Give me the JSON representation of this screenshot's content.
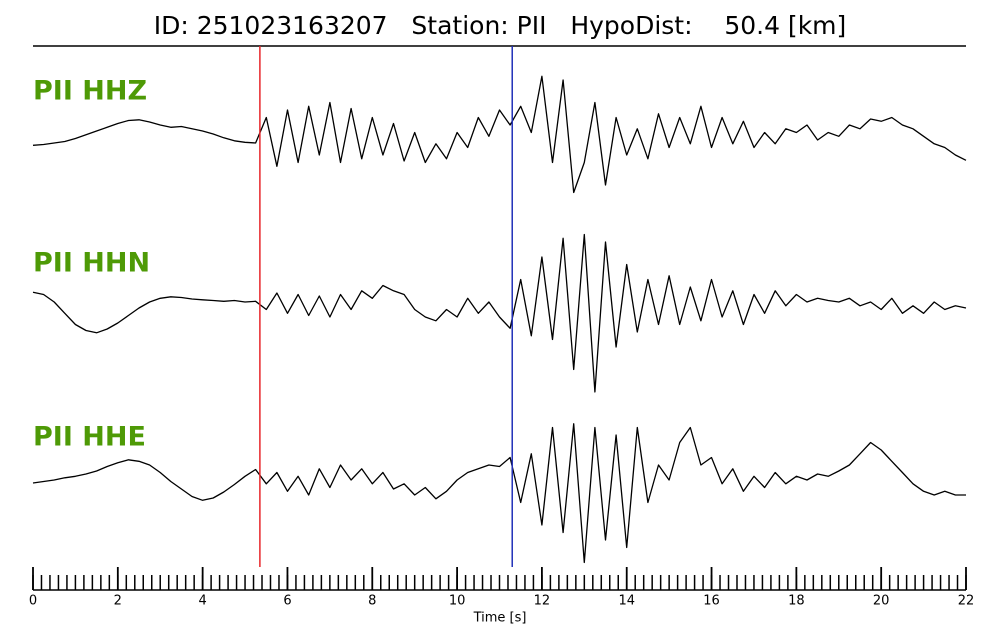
{
  "chart_data": {
    "type": "line",
    "title": "ID: 251023163207   Station: PII   HypoDist:    50.4 [km]",
    "xlabel": "Time [s]",
    "xlim": [
      0,
      22
    ],
    "xticks": [
      0,
      2,
      4,
      6,
      8,
      10,
      12,
      14,
      16,
      18,
      20,
      22
    ],
    "xminor_step": 0.2,
    "markers": [
      {
        "x": 5.35,
        "color": "#e8262a"
      },
      {
        "x": 11.3,
        "color": "#2130b8"
      }
    ],
    "x": [
      0,
      0.25,
      0.5,
      0.75,
      1,
      1.25,
      1.5,
      1.75,
      2,
      2.25,
      2.5,
      2.75,
      3,
      3.25,
      3.5,
      3.75,
      4,
      4.25,
      4.5,
      4.75,
      5,
      5.25,
      5.5,
      5.75,
      6,
      6.25,
      6.5,
      6.75,
      7,
      7.25,
      7.5,
      7.75,
      8,
      8.25,
      8.5,
      8.75,
      9,
      9.25,
      9.5,
      9.75,
      10,
      10.25,
      10.5,
      10.75,
      11,
      11.25,
      11.5,
      11.75,
      12,
      12.25,
      12.5,
      12.75,
      13,
      13.25,
      13.5,
      13.75,
      14,
      14.25,
      14.5,
      14.75,
      15,
      15.25,
      15.5,
      15.75,
      16,
      16.25,
      16.5,
      16.75,
      17,
      17.25,
      17.5,
      17.75,
      18,
      18.25,
      18.5,
      18.75,
      19,
      19.25,
      19.5,
      19.75,
      20,
      20.25,
      20.5,
      20.75,
      21,
      21.25,
      21.5,
      21.75,
      22
    ],
    "series": [
      {
        "name": "PII HHZ",
        "color": "#000000",
        "values": [
          -0.07,
          -0.06,
          -0.04,
          -0.02,
          0.02,
          0.07,
          0.12,
          0.17,
          0.22,
          0.26,
          0.27,
          0.24,
          0.2,
          0.17,
          0.18,
          0.15,
          0.12,
          0.08,
          0.03,
          -0.01,
          -0.03,
          -0.04,
          0.3,
          -0.35,
          0.4,
          -0.3,
          0.45,
          -0.2,
          0.5,
          -0.3,
          0.42,
          -0.25,
          0.3,
          -0.2,
          0.22,
          -0.28,
          0.1,
          -0.3,
          -0.05,
          -0.25,
          0.1,
          -0.1,
          0.3,
          0.05,
          0.4,
          0.2,
          0.45,
          0.1,
          0.85,
          -0.3,
          0.8,
          -0.7,
          -0.3,
          0.5,
          -0.6,
          0.3,
          -0.2,
          0.15,
          -0.25,
          0.35,
          -0.1,
          0.3,
          -0.05,
          0.45,
          -0.1,
          0.3,
          -0.05,
          0.25,
          -0.1,
          0.1,
          -0.05,
          0.15,
          0.1,
          0.2,
          0,
          0.1,
          0.05,
          0.2,
          0.15,
          0.28,
          0.25,
          0.3,
          0.2,
          0.15,
          0.05,
          -0.05,
          -0.1,
          -0.2,
          -0.27
        ]
      },
      {
        "name": "PII HHN",
        "color": "#000000",
        "values": [
          0.13,
          0.1,
          0,
          -0.15,
          -0.3,
          -0.38,
          -0.41,
          -0.36,
          -0.28,
          -0.18,
          -0.08,
          0,
          0.05,
          0.07,
          0.06,
          0.04,
          0.03,
          0.02,
          0.01,
          0.02,
          0,
          0.01,
          -0.1,
          0.12,
          -0.15,
          0.1,
          -0.18,
          0.08,
          -0.2,
          0.1,
          -0.1,
          0.15,
          0.05,
          0.22,
          0.15,
          0.1,
          -0.1,
          -0.2,
          -0.25,
          -0.1,
          -0.2,
          0.05,
          -0.15,
          0,
          -0.2,
          -0.35,
          0.3,
          -0.45,
          0.6,
          -0.5,
          0.85,
          -0.9,
          0.9,
          -1.2,
          0.8,
          -0.6,
          0.5,
          -0.4,
          0.3,
          -0.3,
          0.35,
          -0.3,
          0.2,
          -0.25,
          0.3,
          -0.2,
          0.15,
          -0.3,
          0.1,
          -0.15,
          0.15,
          -0.05,
          0.1,
          0,
          0.05,
          0.02,
          0,
          0.05,
          -0.05,
          0,
          -0.1,
          0.05,
          -0.15,
          -0.05,
          -0.15,
          0,
          -0.1,
          -0.05,
          -0.08
        ]
      },
      {
        "name": "PII HHE",
        "color": "#000000",
        "values": [
          -0.04,
          -0.02,
          0,
          0.03,
          0.05,
          0.08,
          0.12,
          0.18,
          0.23,
          0.27,
          0.25,
          0.2,
          0.1,
          -0.02,
          -0.12,
          -0.22,
          -0.27,
          -0.24,
          -0.16,
          -0.06,
          0.05,
          0.14,
          -0.05,
          0.1,
          -0.15,
          0.05,
          -0.2,
          0.15,
          -0.1,
          0.2,
          0,
          0.15,
          -0.05,
          0.1,
          -0.12,
          -0.05,
          -0.2,
          -0.1,
          -0.25,
          -0.15,
          0,
          0.1,
          0.15,
          0.2,
          0.18,
          0.3,
          -0.3,
          0.35,
          -0.6,
          0.7,
          -0.7,
          0.75,
          -1.1,
          0.7,
          -0.8,
          0.6,
          -0.9,
          0.7,
          -0.3,
          0.2,
          0,
          0.5,
          0.7,
          0.2,
          0.3,
          -0.05,
          0.15,
          -0.15,
          0.05,
          -0.1,
          0.1,
          -0.05,
          0.05,
          0,
          0.08,
          0.05,
          0.12,
          0.2,
          0.35,
          0.5,
          0.4,
          0.25,
          0.1,
          -0.05,
          -0.15,
          -0.2,
          -0.15,
          -0.2,
          -0.2
        ]
      }
    ]
  }
}
